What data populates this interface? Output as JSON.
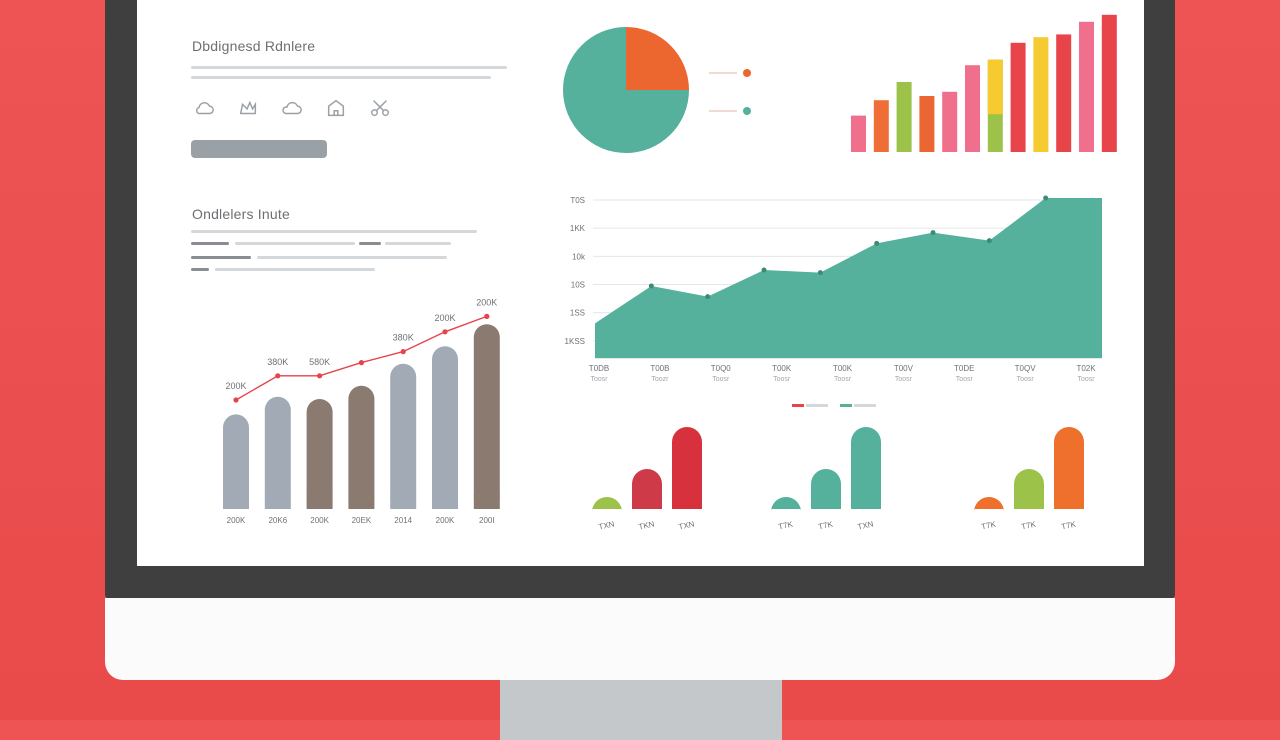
{
  "top_panel": {
    "title": "Dbdignesd Rdnlere"
  },
  "left_panel": {
    "title": "Ondlelers Inute"
  },
  "icons": [
    "cloud-icon",
    "crown-icon",
    "cloud-icon",
    "house-icon",
    "scissors-icon"
  ],
  "colors": {
    "teal": "#55b09c",
    "orange": "#ec6630",
    "gray_blue": "#a2abb5",
    "brown": "#8b7a70",
    "red": "#e0444c",
    "line_red": "#e8424a"
  },
  "chart_data": [
    {
      "type": "pie",
      "slices": [
        {
          "value": 75,
          "color": "#55b09c"
        },
        {
          "value": 25,
          "color": "#ec6630"
        }
      ],
      "legend_colors": [
        "#ec6630",
        "#55b09c"
      ],
      "legend_placement": "right"
    },
    {
      "type": "bar",
      "values": [
        26,
        37,
        50,
        40,
        43,
        62,
        66,
        78,
        82,
        84,
        93,
        98
      ],
      "overlay_values": [
        null,
        null,
        null,
        null,
        null,
        null,
        39,
        null,
        null,
        null,
        null,
        null
      ],
      "colors": [
        "#ef6f8c",
        "#ef6e37",
        "#9cc249",
        "#ec6634",
        "#ef6f8c",
        "#ef6f8c",
        "#9cc249",
        "#e8454b",
        "#f6cb31",
        "#e8454b",
        "#ef6f8c",
        "#e8454b"
      ],
      "overlay_color": "#f6cb31"
    },
    {
      "type": "area",
      "y_tick_labels": [
        "T0S",
        "1KK",
        "10k",
        "10S",
        "1SS",
        "1KSS"
      ],
      "x_tick_labels": [
        "T0DB",
        "T00B",
        "T0Q0",
        "T00K",
        "T00K",
        "T00V",
        "T0DE",
        "T0QV",
        "T02K"
      ],
      "x_sub_labels": [
        "Toosr",
        "Toozr",
        "Toosr",
        "Toosr",
        "Toosr",
        "Toosr",
        "Toosr",
        "Toosr",
        "Toosr"
      ],
      "values": [
        13,
        27,
        23,
        33,
        32,
        43,
        47,
        44,
        60,
        60
      ],
      "ylim": [
        0,
        60
      ],
      "legend": [
        {
          "color": "#e8424a",
          "name": "..."
        },
        {
          "color": "#55b09c",
          "name": "..."
        }
      ],
      "grid": true
    },
    {
      "type": "bar",
      "categories": [
        "200K",
        "20K6",
        "200K",
        "20EK",
        "2014",
        "200K",
        "200I"
      ],
      "values": [
        43,
        51,
        50,
        56,
        66,
        74,
        84
      ],
      "colors": [
        "#a2abb5",
        "#a2abb5",
        "#8b7a70",
        "#8b7a70",
        "#a2abb5",
        "#a2abb5",
        "#8b7a70"
      ],
      "line_values": [
        45,
        56,
        56,
        62,
        67,
        76,
        83
      ],
      "line_color": "#e8424a",
      "data_labels": [
        "200K",
        "380K",
        "580K",
        "",
        "380K",
        "200K",
        "200K"
      ]
    },
    {
      "type": "bar",
      "groups": [
        {
          "labels": [
            "TXN",
            "TKN",
            "TXN"
          ],
          "values": [
            12,
            40,
            82
          ],
          "colors": [
            "#9cc249",
            "#cf3a48",
            "#d8313e"
          ]
        },
        {
          "labels": [
            "T7K",
            "T7K",
            "TXN"
          ],
          "values": [
            12,
            40,
            82
          ],
          "colors": [
            "#55b09c",
            "#55b09c",
            "#55b09c"
          ]
        },
        {
          "labels": [
            "T7K",
            "T7K",
            "T7K"
          ],
          "values": [
            12,
            40,
            82
          ],
          "colors": [
            "#ef6f2c",
            "#9cc249",
            "#ef6f2c"
          ]
        }
      ]
    }
  ]
}
